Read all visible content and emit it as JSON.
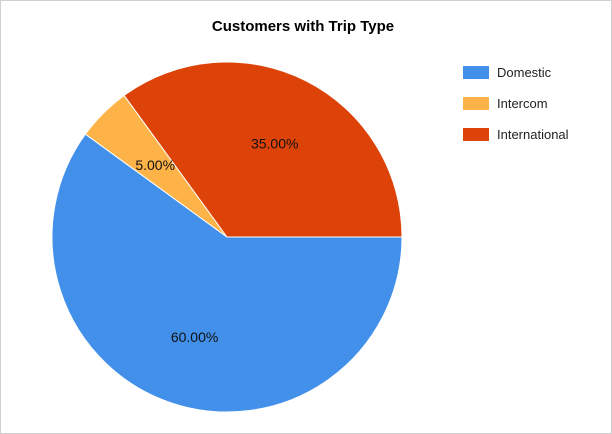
{
  "chart_data": {
    "type": "pie",
    "title": "Customers with Trip Type",
    "slices": [
      {
        "label": "Domestic",
        "value": 60.0,
        "display": "60.00%",
        "color": "#4290E9"
      },
      {
        "label": "Intercom",
        "value": 5.0,
        "display": "5.00%",
        "color": "#FDB347"
      },
      {
        "label": "International",
        "value": 35.0,
        "display": "35.00%",
        "color": "#DD4308"
      }
    ],
    "legend_position": "right",
    "start_angle_note": "clockwise from 3 o'clock"
  }
}
